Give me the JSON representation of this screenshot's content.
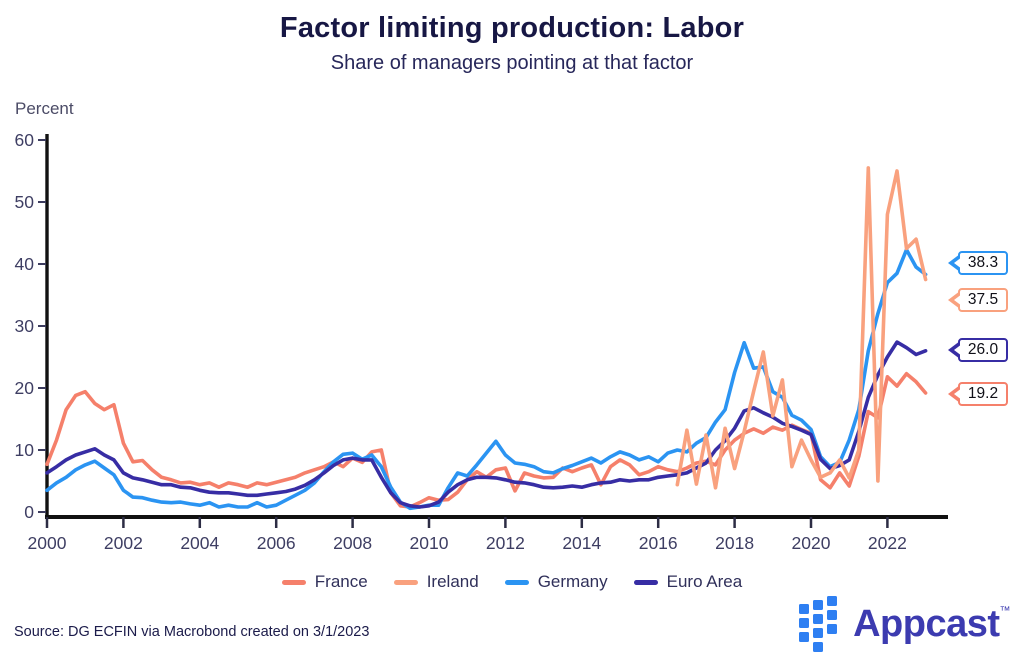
{
  "title": "Factor limiting production: Labor",
  "subtitle": "Share of managers pointing at that factor",
  "axis": {
    "unit_label": "Percent"
  },
  "source_note": "Source: DG ECFIN via Macrobond created on 3/1/2023",
  "branding": {
    "logo_text": "Appcast",
    "trademark": "TM",
    "logo_text_color": "#3c3bb0",
    "logo_square_color": "#2e7ff2"
  },
  "chart_data": {
    "type": "line",
    "title": "Factor limiting production: Labor",
    "subtitle": "Share of managers pointing at that factor",
    "ylabel": "Percent",
    "ylim": [
      0,
      60
    ],
    "xlim": [
      2000,
      2023.5
    ],
    "y_ticks": [
      0,
      10,
      20,
      30,
      40,
      50,
      60
    ],
    "x_ticks": [
      2000,
      2002,
      2004,
      2006,
      2008,
      2010,
      2012,
      2014,
      2016,
      2018,
      2020,
      2022
    ],
    "grid": false,
    "legend_position": "bottom",
    "x_step": 0.25,
    "series": [
      {
        "name": "France",
        "color": "#F5806B",
        "end_label": "19.2",
        "x_start": 2000.0,
        "values": [
          7.7,
          11.6,
          16.5,
          18.8,
          19.4,
          17.5,
          16.5,
          17.3,
          11.1,
          8.1,
          8.3,
          6.8,
          5.6,
          5.2,
          4.7,
          4.8,
          4.4,
          4.7,
          4.0,
          4.7,
          4.4,
          4.0,
          4.7,
          4.4,
          4.8,
          5.2,
          5.6,
          6.3,
          6.8,
          7.3,
          8.1,
          7.3,
          8.7,
          8.0,
          9.7,
          10.0,
          3.1,
          1.0,
          0.8,
          1.5,
          2.3,
          1.9,
          2.0,
          3.2,
          5.2,
          6.5,
          5.6,
          6.8,
          7.1,
          3.4,
          6.3,
          5.8,
          5.5,
          5.6,
          7.1,
          6.5,
          7.1,
          7.6,
          4.4,
          7.3,
          8.4,
          7.6,
          6.0,
          6.5,
          7.3,
          6.8,
          6.5,
          7.1,
          7.9,
          8.2,
          7.6,
          10.0,
          11.6,
          12.7,
          13.4,
          12.7,
          13.7,
          13.2,
          14.0,
          13.3,
          12.7,
          5.2,
          3.9,
          6.3,
          4.2,
          9.0,
          16.2,
          15.2,
          21.8,
          20.3,
          22.3,
          21.0,
          19.2
        ]
      },
      {
        "name": "Ireland",
        "color": "#F9A17E",
        "end_label": "37.5",
        "x_start": 2016.5,
        "values": [
          4.4,
          13.2,
          4.5,
          12.4,
          3.9,
          13.5,
          7.0,
          13.0,
          19.5,
          25.8,
          15.5,
          21.3,
          7.3,
          11.6,
          8.4,
          5.6,
          6.3,
          8.4,
          5.5,
          10.0,
          55.5,
          5.0,
          48.0,
          55.0,
          42.5,
          44.0,
          37.5
        ]
      },
      {
        "name": "Germany",
        "color": "#2B94F2",
        "end_label": "38.3",
        "x_start": 2000.0,
        "values": [
          3.5,
          4.7,
          5.6,
          6.8,
          7.6,
          8.2,
          7.1,
          6.0,
          3.5,
          2.4,
          2.3,
          1.9,
          1.6,
          1.5,
          1.6,
          1.3,
          1.1,
          1.5,
          0.8,
          1.1,
          0.8,
          0.8,
          1.5,
          0.8,
          1.1,
          1.9,
          2.7,
          3.5,
          4.7,
          6.5,
          8.1,
          9.3,
          9.5,
          8.5,
          9.2,
          7.3,
          4.0,
          1.6,
          0.6,
          0.8,
          1.1,
          1.1,
          3.9,
          6.3,
          5.8,
          7.6,
          9.5,
          11.4,
          9.2,
          7.9,
          7.7,
          7.3,
          6.5,
          6.3,
          7.0,
          7.5,
          8.1,
          8.7,
          7.9,
          8.9,
          9.7,
          9.2,
          8.4,
          8.9,
          8.1,
          9.5,
          10.0,
          9.7,
          11.1,
          12.0,
          14.5,
          16.5,
          22.5,
          27.3,
          23.2,
          23.4,
          19.4,
          18.5,
          15.6,
          14.8,
          13.3,
          8.9,
          7.3,
          8.0,
          11.6,
          16.5,
          26.0,
          32.0,
          37.0,
          38.5,
          42.3,
          39.5,
          38.3
        ]
      },
      {
        "name": "Euro Area",
        "color": "#372DA4",
        "end_label": "26.0",
        "x_start": 2000.0,
        "values": [
          6.3,
          7.3,
          8.4,
          9.2,
          9.7,
          10.2,
          9.2,
          8.4,
          6.3,
          5.5,
          5.2,
          4.8,
          4.4,
          4.4,
          4.0,
          3.9,
          3.5,
          3.2,
          3.1,
          3.1,
          2.9,
          2.7,
          2.7,
          2.9,
          3.1,
          3.3,
          3.7,
          4.3,
          5.2,
          6.3,
          7.5,
          8.4,
          8.7,
          8.4,
          8.4,
          5.6,
          3.1,
          1.5,
          1.0,
          0.8,
          1.0,
          1.6,
          3.2,
          4.4,
          5.2,
          5.6,
          5.6,
          5.5,
          5.2,
          4.8,
          4.7,
          4.4,
          4.0,
          3.9,
          4.0,
          4.2,
          4.0,
          4.4,
          4.7,
          4.8,
          5.2,
          5.0,
          5.2,
          5.2,
          5.6,
          5.8,
          6.0,
          6.3,
          7.1,
          7.9,
          10.0,
          11.5,
          13.5,
          16.3,
          16.8,
          16.0,
          15.3,
          14.3,
          13.8,
          13.2,
          12.5,
          8.5,
          7.0,
          7.5,
          8.4,
          13.0,
          18.5,
          22.1,
          25.0,
          27.4,
          26.5,
          25.4,
          26.0
        ]
      }
    ]
  }
}
